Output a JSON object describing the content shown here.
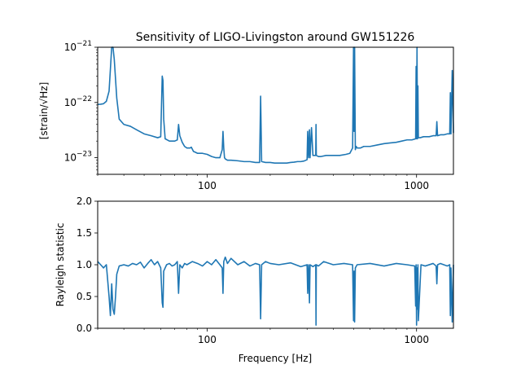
{
  "chart_data": [
    {
      "type": "line",
      "title": "Sensitivity of LIGO-Livingston around GW151226",
      "xlabel": "",
      "ylabel": "[strain/√Hz]",
      "x_scale": "log",
      "y_scale": "log",
      "xlim": [
        30,
        1500
      ],
      "ylim": [
        5e-24,
        1e-21
      ],
      "x_ticks": [
        {
          "value": 100,
          "label": "100"
        },
        {
          "value": 1000,
          "label": "1000"
        }
      ],
      "y_ticks": [
        {
          "value": 1e-23,
          "base": "10",
          "exp": "−23"
        },
        {
          "value": 1e-22,
          "base": "10",
          "exp": "−22"
        },
        {
          "value": 1e-21,
          "base": "10",
          "exp": "−21"
        }
      ],
      "color": "#1f77b4",
      "grid": false,
      "series": [
        {
          "x": [
            30,
            31,
            32,
            33,
            34,
            34.5,
            35,
            35.5,
            36,
            37,
            38,
            40,
            43,
            46,
            50,
            54,
            58,
            60,
            61,
            61.5,
            62,
            63,
            66,
            70,
            72,
            73,
            74,
            76,
            78,
            80,
            82,
            83,
            84,
            86,
            88,
            90,
            95,
            100,
            105,
            110,
            115,
            118,
            119,
            120,
            121,
            122,
            125,
            130,
            140,
            150,
            160,
            170,
            178,
            180,
            182,
            190,
            200,
            210,
            220,
            230,
            240,
            250,
            260,
            270,
            280,
            290,
            300,
            302,
            305,
            308,
            310,
            315,
            320,
            330,
            331,
            332,
            340,
            350,
            370,
            400,
            430,
            460,
            480,
            495,
            500,
            503,
            506,
            510,
            515,
            520,
            540,
            560,
            600,
            650,
            700,
            750,
            800,
            850,
            900,
            950,
            990,
            995,
            1000,
            1005,
            1010,
            1015,
            1020,
            1040,
            1080,
            1100,
            1150,
            1200,
            1240,
            1250,
            1260,
            1300,
            1350,
            1400,
            1440,
            1450,
            1460,
            1480,
            1500
          ],
          "y": [
            9.2e-23,
            9.3e-23,
            9.5e-23,
            1.05e-22,
            1.6e-22,
            4e-22,
            1.5e-21,
            1.2e-21,
            6e-22,
            1.2e-22,
            5e-23,
            4e-23,
            3.7e-23,
            3.2e-23,
            2.7e-23,
            2.5e-23,
            2.3e-23,
            2.4e-23,
            3e-22,
            2.5e-22,
            5e-23,
            2.2e-23,
            2e-23,
            2e-23,
            2.1e-23,
            4e-23,
            2.5e-23,
            1.9e-23,
            1.6e-23,
            1.5e-23,
            1.5e-23,
            1.5e-23,
            1.55e-23,
            1.3e-23,
            1.25e-23,
            1.2e-23,
            1.2e-23,
            1.15e-23,
            1.05e-23,
            1e-23,
            1e-23,
            1.4e-23,
            3e-23,
            1.5e-23,
            1e-23,
            9.5e-24,
            9e-24,
            9e-24,
            8.8e-24,
            8.5e-24,
            8.5e-24,
            8.2e-24,
            8.2e-24,
            1.3e-22,
            8.5e-24,
            8.2e-24,
            8.2e-24,
            8e-24,
            8e-24,
            8e-24,
            8e-24,
            8.2e-24,
            8.3e-24,
            8.5e-24,
            8.5e-24,
            8.7e-24,
            9.2e-24,
            3e-23,
            1e-23,
            3.2e-23,
            1e-23,
            3.5e-23,
            1.1e-23,
            1.1e-23,
            4e-23,
            1.1e-23,
            1.05e-23,
            1.05e-23,
            1.1e-23,
            1.1e-23,
            1.1e-23,
            1.15e-23,
            1.2e-23,
            1.5e-23,
            1e-21,
            3e-23,
            1e-21,
            1.4e-23,
            1.6e-23,
            1.5e-23,
            1.5e-23,
            1.6e-23,
            1.6e-23,
            1.7e-23,
            1.8e-23,
            1.85e-23,
            1.9e-23,
            2e-23,
            2.1e-23,
            2.1e-23,
            2.2e-23,
            4.5e-22,
            2.2e-23,
            1e-21,
            2.2e-23,
            2e-22,
            2.3e-23,
            2.3e-23,
            2.4e-23,
            2.4e-23,
            2.4e-23,
            2.5e-23,
            2.5e-23,
            4.5e-23,
            2.5e-23,
            2.6e-23,
            2.6e-23,
            2.7e-23,
            2.7e-23,
            1.5e-22,
            2.7e-23,
            3.8e-22,
            2.8e-23
          ]
        }
      ]
    },
    {
      "type": "line",
      "title": "",
      "xlabel": "Frequency [Hz]",
      "ylabel": "Rayleigh statistic",
      "x_scale": "log",
      "y_scale": "linear",
      "xlim": [
        30,
        1500
      ],
      "ylim": [
        0,
        2
      ],
      "x_ticks": [
        {
          "value": 100,
          "label": "100"
        },
        {
          "value": 1000,
          "label": "1000"
        }
      ],
      "y_ticks": [
        {
          "value": 0,
          "label": "0.0"
        },
        {
          "value": 0.5,
          "label": "0.5"
        },
        {
          "value": 1,
          "label": "1.0"
        },
        {
          "value": 1.5,
          "label": "1.5"
        },
        {
          "value": 2,
          "label": "2.0"
        }
      ],
      "color": "#1f77b4",
      "grid": false,
      "series": [
        {
          "x": [
            30,
            31,
            32,
            33,
            34,
            34.5,
            35,
            35.5,
            36,
            36.5,
            37,
            38,
            40,
            42,
            44,
            46,
            48,
            50,
            52,
            54,
            56,
            58,
            60,
            61,
            61.5,
            62,
            64,
            66,
            68,
            70,
            72,
            73,
            74,
            76,
            78,
            80,
            85,
            90,
            95,
            100,
            105,
            110,
            115,
            118,
            119,
            120,
            122,
            125,
            130,
            140,
            150,
            160,
            170,
            178,
            180,
            182,
            190,
            200,
            220,
            250,
            280,
            300,
            302,
            305,
            308,
            310,
            320,
            330,
            331,
            332,
            340,
            360,
            400,
            450,
            495,
            500,
            503,
            506,
            510,
            520,
            600,
            700,
            800,
            900,
            980,
            990,
            995,
            1000,
            1005,
            1010,
            1015,
            1020,
            1050,
            1100,
            1200,
            1240,
            1250,
            1260,
            1300,
            1400,
            1440,
            1450,
            1460,
            1480,
            1500
          ],
          "y": [
            1.05,
            1.0,
            0.95,
            1.0,
            0.5,
            0.2,
            0.7,
            0.3,
            0.22,
            0.5,
            0.85,
            0.98,
            1.0,
            0.98,
            1.02,
            1.0,
            1.04,
            0.95,
            1.02,
            1.08,
            1.0,
            1.05,
            0.95,
            0.4,
            0.33,
            0.9,
            1.0,
            1.02,
            0.98,
            1.0,
            1.05,
            0.55,
            1.0,
            0.95,
            1.02,
            1.0,
            1.05,
            1.02,
            0.98,
            1.05,
            1.0,
            1.08,
            1.0,
            0.95,
            0.55,
            1.05,
            1.12,
            1.02,
            1.1,
            1.0,
            1.05,
            0.98,
            1.02,
            1.0,
            0.15,
            1.0,
            1.05,
            1.02,
            1.0,
            1.03,
            0.97,
            1.0,
            0.55,
            1.0,
            0.4,
            1.0,
            0.97,
            1.0,
            0.05,
            1.0,
            0.98,
            1.05,
            1.0,
            1.02,
            1.0,
            0.12,
            0.9,
            0.1,
            0.95,
            1.0,
            1.02,
            0.98,
            1.02,
            1.0,
            0.98,
            0.35,
            1.0,
            0.05,
            0.95,
            0.3,
            1.0,
            0.12,
            1.0,
            0.98,
            1.02,
            0.98,
            0.7,
            1.0,
            1.02,
            0.98,
            1.0,
            0.2,
            0.95,
            0.1,
            1.0
          ]
        }
      ]
    }
  ]
}
